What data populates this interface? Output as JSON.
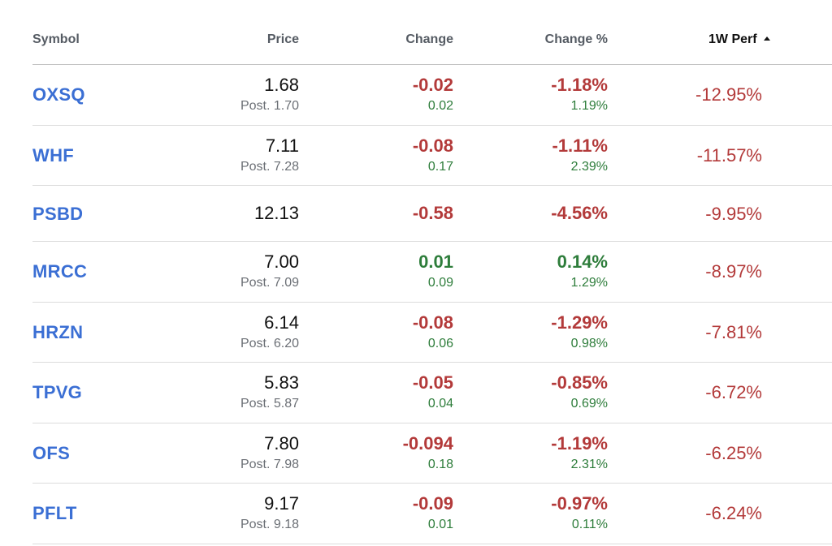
{
  "columns": {
    "symbol": "Symbol",
    "price": "Price",
    "change": "Change",
    "change_pct": "Change %",
    "perf_1w": "1W Perf"
  },
  "sort": {
    "column": "perf_1w",
    "direction": "ascending",
    "icon": "sort-ascending-icon"
  },
  "colors": {
    "link": "#3b6fd4",
    "negative": "#b33a3a",
    "positive": "#2e7d3b"
  },
  "rows": [
    {
      "symbol": "OXSQ",
      "price": "1.68",
      "post_price": "Post. 1.70",
      "change": "-0.02",
      "post_change": "0.02",
      "change_pct": "-1.18%",
      "post_change_pct": "1.19%",
      "perf_1w": "-12.95%"
    },
    {
      "symbol": "WHF",
      "price": "7.11",
      "post_price": "Post. 7.28",
      "change": "-0.08",
      "post_change": "0.17",
      "change_pct": "-1.11%",
      "post_change_pct": "2.39%",
      "perf_1w": "-11.57%"
    },
    {
      "symbol": "PSBD",
      "price": "12.13",
      "change": "-0.58",
      "change_pct": "-4.56%",
      "perf_1w": "-9.95%"
    },
    {
      "symbol": "MRCC",
      "price": "7.00",
      "post_price": "Post. 7.09",
      "change": "0.01",
      "post_change": "0.09",
      "change_pct": "0.14%",
      "post_change_pct": "1.29%",
      "perf_1w": "-8.97%"
    },
    {
      "symbol": "HRZN",
      "price": "6.14",
      "post_price": "Post. 6.20",
      "change": "-0.08",
      "post_change": "0.06",
      "change_pct": "-1.29%",
      "post_change_pct": "0.98%",
      "perf_1w": "-7.81%"
    },
    {
      "symbol": "TPVG",
      "price": "5.83",
      "post_price": "Post. 5.87",
      "change": "-0.05",
      "post_change": "0.04",
      "change_pct": "-0.85%",
      "post_change_pct": "0.69%",
      "perf_1w": "-6.72%"
    },
    {
      "symbol": "OFS",
      "price": "7.80",
      "post_price": "Post. 7.98",
      "change": "-0.094",
      "post_change": "0.18",
      "change_pct": "-1.19%",
      "post_change_pct": "2.31%",
      "perf_1w": "-6.25%"
    },
    {
      "symbol": "PFLT",
      "price": "9.17",
      "post_price": "Post. 9.18",
      "change": "-0.09",
      "post_change": "0.01",
      "change_pct": "-0.97%",
      "post_change_pct": "0.11%",
      "perf_1w": "-6.24%"
    }
  ]
}
